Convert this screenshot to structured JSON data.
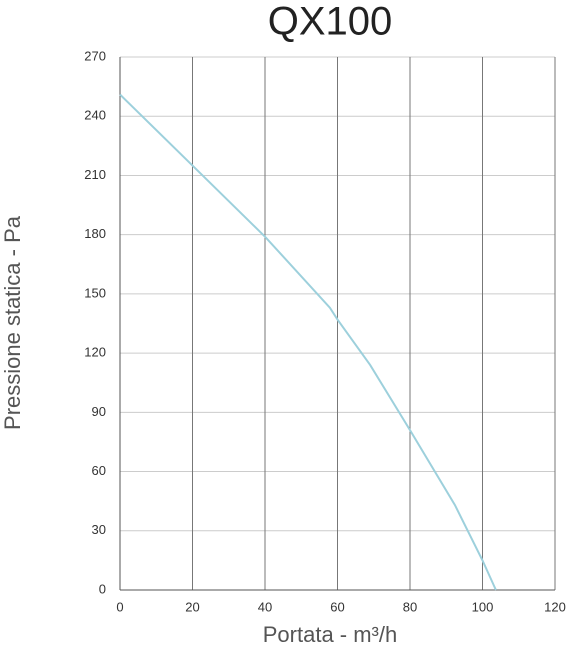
{
  "chart_data": {
    "type": "line",
    "title": "QX100",
    "x_label": "Portata - m³/h",
    "y_label": "Pressione statica - Pa",
    "series": [
      {
        "name": "QX100",
        "color": "#9dd0dc",
        "x": [
          0,
          20,
          40,
          57.9,
          60,
          69,
          80,
          92.4,
          100,
          103.7
        ],
        "values": [
          251,
          215,
          179,
          143,
          137,
          114,
          81,
          43,
          15,
          0
        ]
      }
    ],
    "xlim": [
      0,
      120
    ],
    "xticks": [
      0,
      20,
      40,
      60,
      80,
      100,
      120
    ],
    "ylim": [
      0,
      270
    ],
    "yticks": [
      0,
      30,
      60,
      90,
      120,
      150,
      180,
      210,
      240,
      270
    ],
    "grid": true
  }
}
